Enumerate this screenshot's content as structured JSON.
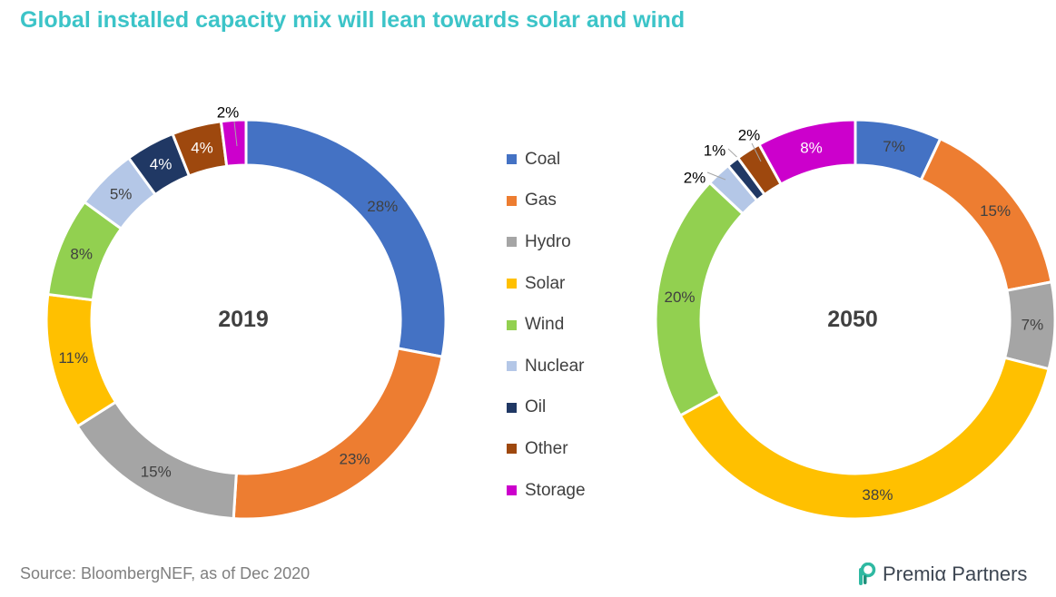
{
  "title": "Global installed capacity mix will lean towards solar and wind",
  "source": "Source:  BloombergNEF,  as of Dec 2020",
  "brand": "Premiα Partners",
  "chart_data": {
    "type": "donut",
    "categories": [
      "Coal",
      "Gas",
      "Hydro",
      "Solar",
      "Wind",
      "Nuclear",
      "Oil",
      "Other",
      "Storage"
    ],
    "colors": [
      "#4472c4",
      "#ed7d31",
      "#a5a5a5",
      "#ffc000",
      "#92d050",
      "#b4c7e7",
      "#203864",
      "#9e480e",
      "#cc00cc"
    ],
    "legend_position": "center",
    "charts": [
      {
        "center_label": "2019",
        "values": [
          28,
          23,
          15,
          11,
          8,
          5,
          4,
          4,
          2
        ],
        "labels": [
          "28%",
          "23%",
          "15%",
          "11%",
          "8%",
          "5%",
          "4%",
          "4%",
          "2%"
        ]
      },
      {
        "center_label": "2050",
        "values": [
          7,
          15,
          7,
          38,
          20,
          2,
          1,
          2,
          8
        ],
        "labels": [
          "7%",
          "15%",
          "7%",
          "38%",
          "20%",
          "2%",
          "1%",
          "2%",
          "8%"
        ]
      }
    ]
  }
}
